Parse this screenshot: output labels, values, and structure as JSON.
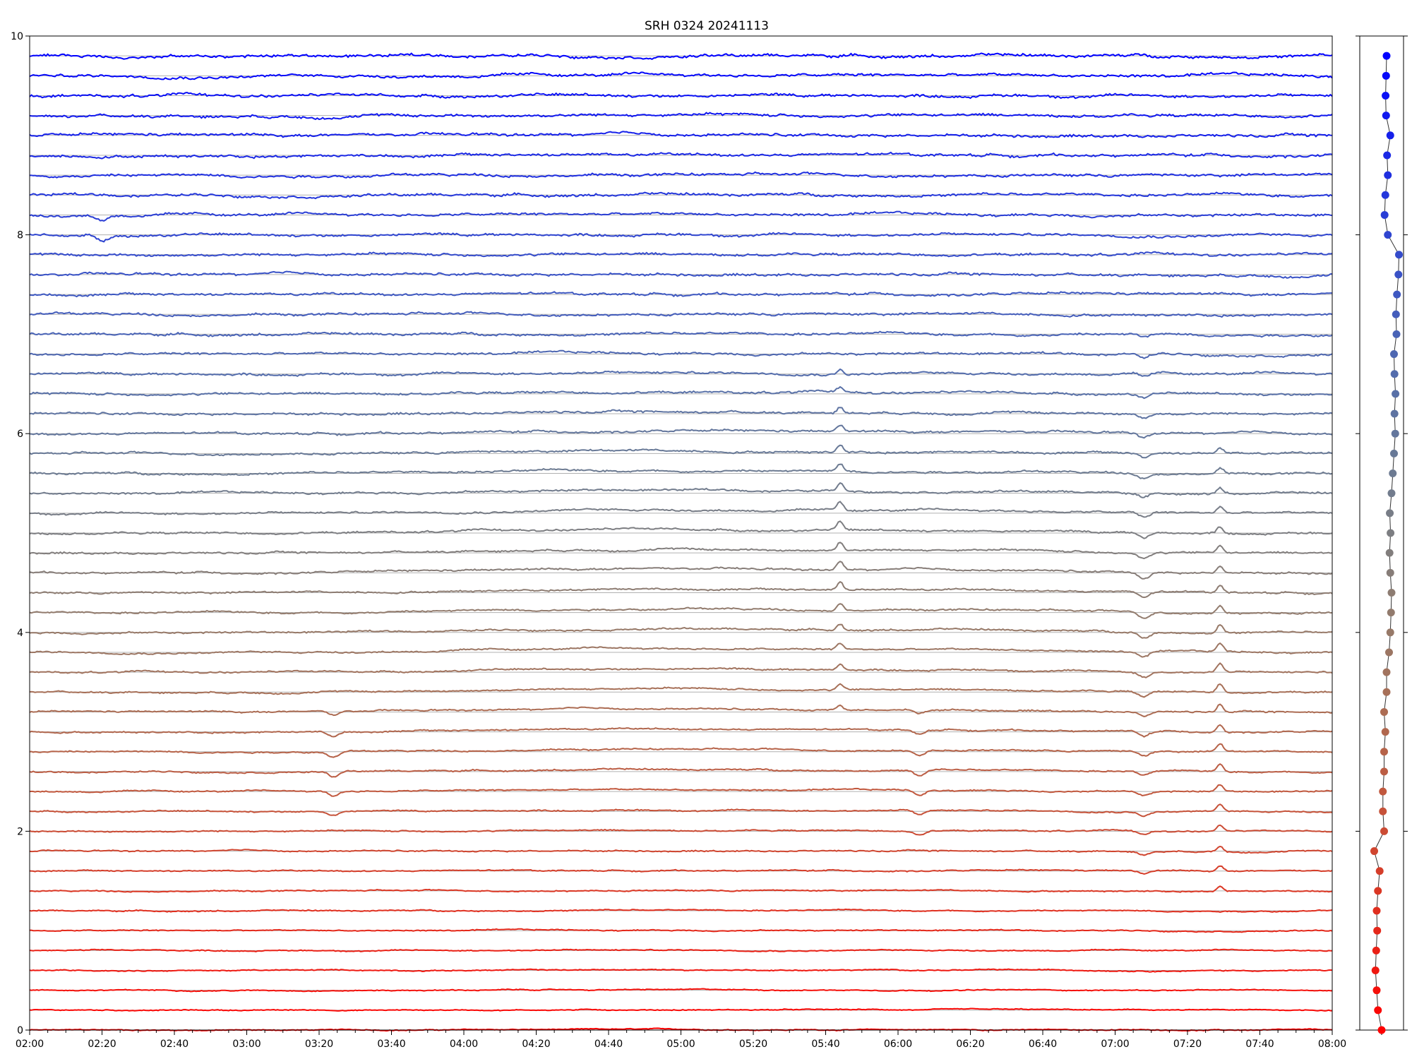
{
  "chart_data": [
    {
      "type": "line",
      "title": "SRH 0324 20241113",
      "xlabel": "",
      "ylabel": "",
      "x_range": [
        "02:00",
        "08:00"
      ],
      "xticks": [
        "02:00",
        "02:20",
        "02:40",
        "03:00",
        "03:20",
        "03:40",
        "04:00",
        "04:20",
        "04:40",
        "05:00",
        "05:20",
        "05:40",
        "06:00",
        "06:20",
        "06:40",
        "07:00",
        "07:20",
        "07:40",
        "08:00"
      ],
      "ylim": [
        0,
        10
      ],
      "yticks": [
        "0",
        "2",
        "4",
        "6",
        "8",
        "10"
      ],
      "grid": "horizontal baselines at each trace offset",
      "legend": "none",
      "color_start": "#ff0000",
      "color_end": "#0000ff",
      "n_traces": 50,
      "trace_spacing": 0.2,
      "events": [
        {
          "time": "02:20",
          "traces": "40-41",
          "shape": "dip"
        },
        {
          "time": "03:24",
          "traces": "11-16",
          "shape": "dip"
        },
        {
          "time": "05:44",
          "traces": "16-33",
          "shape": "spike"
        },
        {
          "time": "06:06",
          "traces": "10-16",
          "shape": "dip"
        },
        {
          "time": "07:08",
          "traces": "8-35",
          "shape": "dip"
        },
        {
          "time": "07:29",
          "traces": "7-29",
          "shape": "spike"
        }
      ]
    },
    {
      "type": "scatter",
      "title": "",
      "ylim": [
        0,
        10
      ],
      "x": [
        0.0,
        0.15,
        0.2,
        0.25,
        0.22,
        0.18,
        0.2,
        0.15,
        0.08,
        0.3,
        -0.1,
        -0.05,
        -0.05,
        -0.1,
        -0.1,
        -0.15,
        -0.1,
        -0.2,
        -0.2,
        -0.3,
        -0.35,
        -0.38,
        -0.4,
        -0.35,
        -0.32,
        -0.36,
        -0.33,
        -0.4,
        -0.45,
        -0.5,
        -0.55,
        -0.52,
        -0.56,
        -0.52,
        -0.5,
        -0.6,
        -0.58,
        -0.62,
        -0.68,
        -0.7,
        -0.25,
        -0.12,
        -0.15,
        -0.25,
        -0.22,
        -0.35,
        -0.18,
        -0.16,
        -0.18,
        -0.2
      ],
      "y": [
        0.0,
        0.2,
        0.4,
        0.6,
        0.8,
        1.0,
        1.2,
        1.4,
        1.6,
        1.8,
        2.0,
        2.2,
        2.4,
        2.6,
        2.8,
        3.0,
        3.2,
        3.4,
        3.6,
        3.8,
        4.0,
        4.2,
        4.4,
        4.6,
        4.8,
        5.0,
        5.2,
        5.4,
        5.6,
        5.8,
        6.0,
        6.2,
        6.4,
        6.6,
        6.8,
        7.0,
        7.2,
        7.4,
        7.6,
        7.8,
        8.0,
        8.2,
        8.4,
        8.6,
        8.8,
        9.0,
        9.2,
        9.4,
        9.6,
        9.8
      ],
      "connected": true
    }
  ]
}
